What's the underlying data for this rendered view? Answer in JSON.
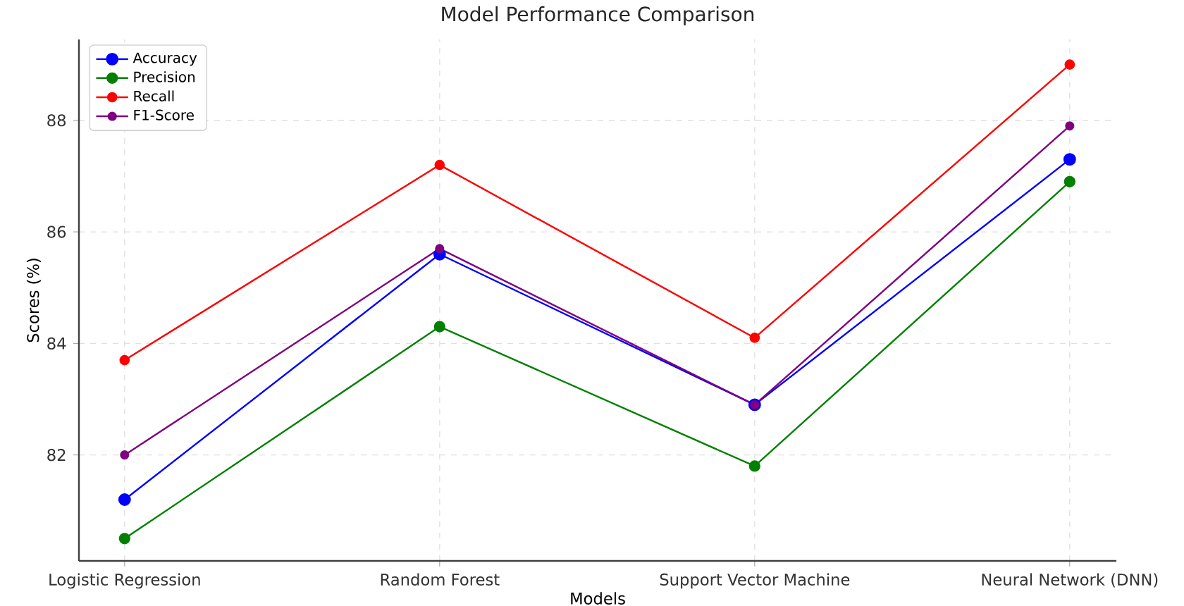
{
  "chart_data": {
    "type": "line",
    "title": "Model Performance Comparison",
    "xlabel": "Models",
    "ylabel": "Scores (%)",
    "categories": [
      "Logistic Regression",
      "Random Forest",
      "Support Vector Machine",
      "Neural Network (DNN)"
    ],
    "series": [
      {
        "name": "Accuracy",
        "color": "#0000ff",
        "values": [
          81.2,
          85.6,
          82.9,
          87.3
        ]
      },
      {
        "name": "Precision",
        "color": "#008000",
        "values": [
          80.5,
          84.3,
          81.8,
          86.9
        ]
      },
      {
        "name": "Recall",
        "color": "#ff0000",
        "values": [
          83.7,
          87.2,
          84.1,
          89.0
        ]
      },
      {
        "name": "F1-Score",
        "color": "#800080",
        "values": [
          82.0,
          85.7,
          82.9,
          87.9
        ]
      }
    ],
    "ylim": [
      80.1,
      89.45
    ],
    "yticks": [
      82,
      84,
      86,
      88
    ],
    "grid": true,
    "legend": "top left",
    "marker": "circle",
    "line_style": "solid"
  }
}
